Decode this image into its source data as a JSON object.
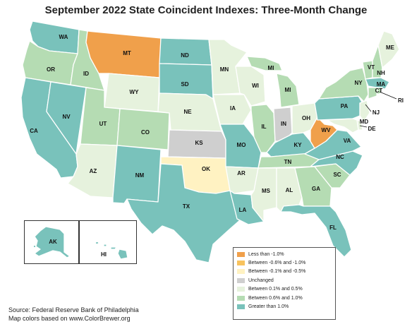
{
  "title": "September 2022 State Coincident Indexes: Three-Month Change",
  "legend": [
    {
      "label": "Less than -1.0%",
      "color": "#f0a04b"
    },
    {
      "label": "Between -0.6% and -1.0%",
      "color": "#f8c35e"
    },
    {
      "label": "Between -0.1% and -0.5%",
      "color": "#fff2c2"
    },
    {
      "label": "Unchanged",
      "color": "#cfcfcf"
    },
    {
      "label": "Between 0.1% and 0.5%",
      "color": "#e6f2dd"
    },
    {
      "label": "Between 0.6% and 1.0%",
      "color": "#b5dcb3"
    },
    {
      "label": "Greater than 1.0%",
      "color": "#79c2bb"
    }
  ],
  "states": {
    "WA": "Greater than 1.0%",
    "OR": "Between 0.6% and 1.0%",
    "CA": "Greater than 1.0%",
    "ID": "Between 0.6% and 1.0%",
    "NV": "Greater than 1.0%",
    "MT": "Less than -1.0%",
    "WY": "Between 0.1% and 0.5%",
    "UT": "Between 0.6% and 1.0%",
    "AZ": "Between 0.1% and 0.5%",
    "CO": "Between 0.6% and 1.0%",
    "NM": "Greater than 1.0%",
    "ND": "Greater than 1.0%",
    "SD": "Greater than 1.0%",
    "NE": "Between 0.1% and 0.5%",
    "KS": "Unchanged",
    "OK": "Between -0.1% and -0.5%",
    "TX": "Greater than 1.0%",
    "MN": "Between 0.1% and 0.5%",
    "IA": "Between 0.1% and 0.5%",
    "MO": "Greater than 1.0%",
    "AR": "Between 0.1% and 0.5%",
    "LA": "Greater than 1.0%",
    "WI": "Between 0.1% and 0.5%",
    "IL": "Between 0.6% and 1.0%",
    "MI": "Between 0.6% and 1.0%",
    "IN": "Unchanged",
    "OH": "Between 0.1% and 0.5%",
    "KY": "Greater than 1.0%",
    "TN": "Between 0.6% and 1.0%",
    "MS": "Between 0.1% and 0.5%",
    "AL": "Between 0.1% and 0.5%",
    "GA": "Between 0.6% and 1.0%",
    "FL": "Greater than 1.0%",
    "SC": "Between 0.6% and 1.0%",
    "NC": "Greater than 1.0%",
    "VA": "Greater than 1.0%",
    "WV": "Less than -1.0%",
    "PA": "Greater than 1.0%",
    "NY": "Between 0.6% and 1.0%",
    "VT": "Between 0.6% and 1.0%",
    "NH": "Between 0.6% and 1.0%",
    "ME": "Between 0.1% and 0.5%",
    "MA": "Greater than 1.0%",
    "CT": "Between 0.6% and 1.0%",
    "RI": "Between 0.6% and 1.0%",
    "NJ": "Between 0.1% and 0.5%",
    "DE": "Between 0.1% and 0.5%",
    "MD": "Between 0.1% and 0.5%",
    "AK": "Greater than 1.0%",
    "HI": "Greater than 1.0%"
  },
  "source": {
    "line1": "Source: Federal Reserve Bank of Philadelphia",
    "line2": "Map colors based on www.ColorBrewer.org"
  }
}
